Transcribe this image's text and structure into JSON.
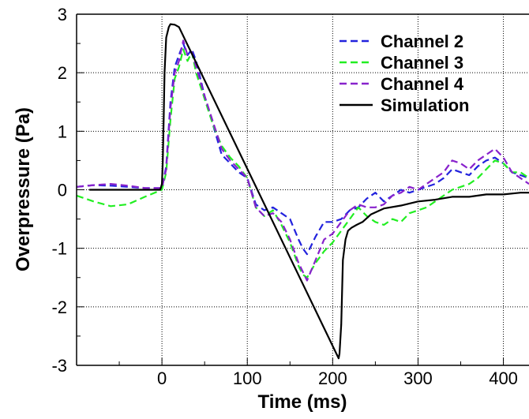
{
  "chart_data": {
    "type": "line",
    "title": "",
    "xlabel": "Time (ms)",
    "ylabel": "Overpressure (Pa)",
    "xlim": [
      -100,
      430
    ],
    "ylim": [
      -3,
      3
    ],
    "x_ticks": [
      0,
      100,
      200,
      300,
      400
    ],
    "x_tick_labels": [
      "0",
      "100",
      "200",
      "300",
      "400"
    ],
    "y_ticks": [
      -3,
      -2,
      -1,
      0,
      1,
      2,
      3
    ],
    "y_tick_labels": [
      "-3",
      "-2",
      "-1",
      "0",
      "1",
      "2",
      "3"
    ],
    "grid": true,
    "legend_position": "top-right",
    "series": [
      {
        "name": "Channel 2",
        "color": "#2222dd",
        "dash": "dashed",
        "x": [
          -100,
          -80,
          -60,
          -40,
          -20,
          0,
          5,
          10,
          15,
          20,
          25,
          30,
          35,
          40,
          50,
          60,
          70,
          80,
          90,
          100,
          110,
          120,
          130,
          140,
          150,
          160,
          165,
          170,
          180,
          190,
          200,
          210,
          220,
          230,
          240,
          250,
          260,
          270,
          280,
          290,
          300,
          310,
          320,
          330,
          340,
          350,
          360,
          370,
          380,
          390,
          400,
          410,
          420,
          430
        ],
        "y": [
          0.05,
          0.08,
          0.07,
          0.05,
          0.03,
          0.03,
          0.4,
          1.5,
          2.1,
          2.3,
          2.5,
          2.3,
          2.4,
          2.2,
          1.6,
          1.1,
          0.6,
          0.45,
          0.3,
          0.2,
          -0.25,
          -0.35,
          -0.3,
          -0.4,
          -0.5,
          -0.85,
          -1.0,
          -1.1,
          -0.8,
          -0.55,
          -0.55,
          -0.5,
          -0.35,
          -0.3,
          -0.15,
          -0.05,
          -0.2,
          -0.1,
          0.0,
          -0.05,
          0.0,
          0.05,
          0.1,
          0.2,
          0.35,
          0.3,
          0.25,
          0.4,
          0.5,
          0.55,
          0.45,
          0.3,
          0.25,
          0.2
        ]
      },
      {
        "name": "Channel 3",
        "color": "#22ee22",
        "dash": "dashed",
        "x": [
          -100,
          -80,
          -60,
          -40,
          -20,
          0,
          5,
          10,
          15,
          20,
          25,
          30,
          35,
          40,
          50,
          60,
          70,
          80,
          90,
          100,
          110,
          120,
          130,
          140,
          150,
          160,
          165,
          170,
          180,
          190,
          200,
          210,
          220,
          230,
          240,
          250,
          260,
          270,
          280,
          290,
          300,
          310,
          320,
          330,
          340,
          350,
          360,
          370,
          380,
          390,
          400,
          410,
          420,
          430
        ],
        "y": [
          -0.1,
          -0.2,
          -0.28,
          -0.25,
          -0.12,
          0.0,
          0.3,
          1.2,
          1.9,
          2.1,
          2.4,
          2.2,
          2.35,
          2.0,
          1.55,
          1.1,
          0.75,
          0.55,
          0.4,
          0.2,
          -0.3,
          -0.45,
          -0.35,
          -0.6,
          -0.9,
          -1.3,
          -1.45,
          -1.5,
          -1.25,
          -1.05,
          -0.9,
          -0.7,
          -0.5,
          -0.3,
          -0.45,
          -0.55,
          -0.6,
          -0.5,
          -0.55,
          -0.4,
          -0.35,
          -0.3,
          -0.2,
          -0.1,
          0.0,
          0.05,
          0.1,
          0.2,
          0.35,
          0.5,
          0.45,
          0.3,
          0.3,
          0.2
        ]
      },
      {
        "name": "Channel 4",
        "color": "#8822cc",
        "dash": "dashed",
        "x": [
          -100,
          -80,
          -60,
          -40,
          -20,
          0,
          5,
          10,
          15,
          20,
          25,
          30,
          35,
          40,
          50,
          60,
          70,
          80,
          90,
          100,
          110,
          120,
          130,
          140,
          150,
          160,
          165,
          170,
          180,
          190,
          200,
          210,
          220,
          230,
          240,
          250,
          260,
          270,
          280,
          290,
          300,
          310,
          320,
          330,
          340,
          350,
          360,
          370,
          380,
          390,
          400,
          410,
          420,
          430
        ],
        "y": [
          0.05,
          0.08,
          0.1,
          0.07,
          0.03,
          0.03,
          0.35,
          1.4,
          2.0,
          2.2,
          2.55,
          2.3,
          2.35,
          2.1,
          1.6,
          1.15,
          0.7,
          0.5,
          0.35,
          0.2,
          -0.3,
          -0.45,
          -0.4,
          -0.55,
          -0.85,
          -1.25,
          -1.4,
          -1.55,
          -1.2,
          -0.85,
          -0.75,
          -0.55,
          -0.35,
          -0.25,
          -0.3,
          -0.3,
          -0.25,
          -0.1,
          -0.05,
          0.05,
          0.0,
          0.1,
          0.2,
          0.3,
          0.5,
          0.45,
          0.35,
          0.5,
          0.6,
          0.7,
          0.55,
          0.3,
          0.2,
          0.1
        ]
      },
      {
        "name": "Simulation",
        "color": "#000000",
        "dash": "solid",
        "x": [
          -85,
          -50,
          -20,
          -2,
          0,
          1,
          2,
          3,
          5,
          8,
          10,
          15,
          20,
          207,
          208,
          210,
          212,
          215,
          218,
          222,
          228,
          235,
          245,
          260,
          280,
          300,
          320,
          340,
          360,
          380,
          400,
          420,
          430
        ],
        "y": [
          0.0,
          0.0,
          0.0,
          0.0,
          0.1,
          0.5,
          1.2,
          2.0,
          2.6,
          2.78,
          2.83,
          2.82,
          2.78,
          -2.88,
          -2.8,
          -2.3,
          -1.2,
          -0.85,
          -0.7,
          -0.65,
          -0.6,
          -0.55,
          -0.42,
          -0.32,
          -0.27,
          -0.2,
          -0.17,
          -0.12,
          -0.12,
          -0.08,
          -0.08,
          -0.05,
          -0.05
        ]
      }
    ]
  }
}
